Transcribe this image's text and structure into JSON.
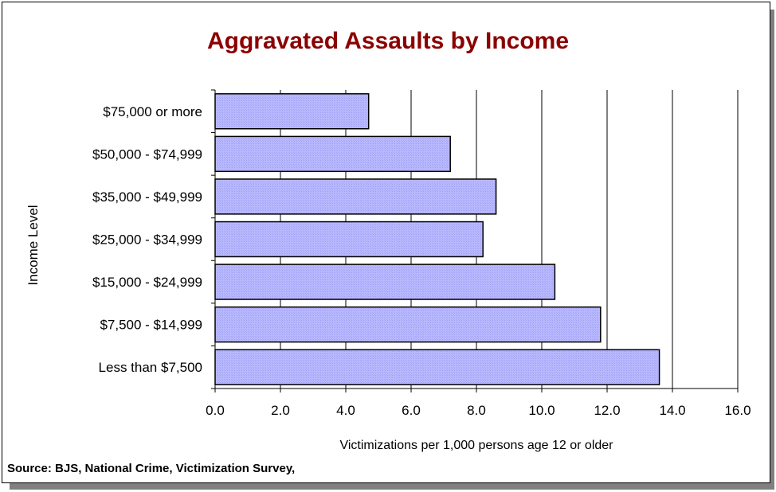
{
  "chart_data": {
    "type": "bar",
    "orientation": "horizontal",
    "title": "Aggravated Assaults by Income",
    "xlabel": "Victimizations per 1,000 persons age 12 or older",
    "ylabel": "Income Level",
    "categories": [
      "Less than $7,500",
      "$7,500 - $14,999",
      "$15,000 - $24,999",
      "$25,000 - $34,999",
      "$35,000 - $49,999",
      "$50,000 - $74,999",
      "$75,000 or more"
    ],
    "values": [
      13.6,
      11.8,
      10.4,
      8.2,
      8.6,
      7.2,
      4.7
    ],
    "xlim": [
      0,
      16
    ],
    "x_ticks": [
      "0.0",
      "2.0",
      "4.0",
      "6.0",
      "8.0",
      "10.0",
      "12.0",
      "14.0",
      "16.0"
    ],
    "grid": "vertical",
    "legend": "none",
    "colors": {
      "bar_fill": "#b3b3ff",
      "bar_stroke": "#000000",
      "title": "#8b0000"
    }
  },
  "source": "Source: BJS,  National Crime, Victimization Survey,"
}
